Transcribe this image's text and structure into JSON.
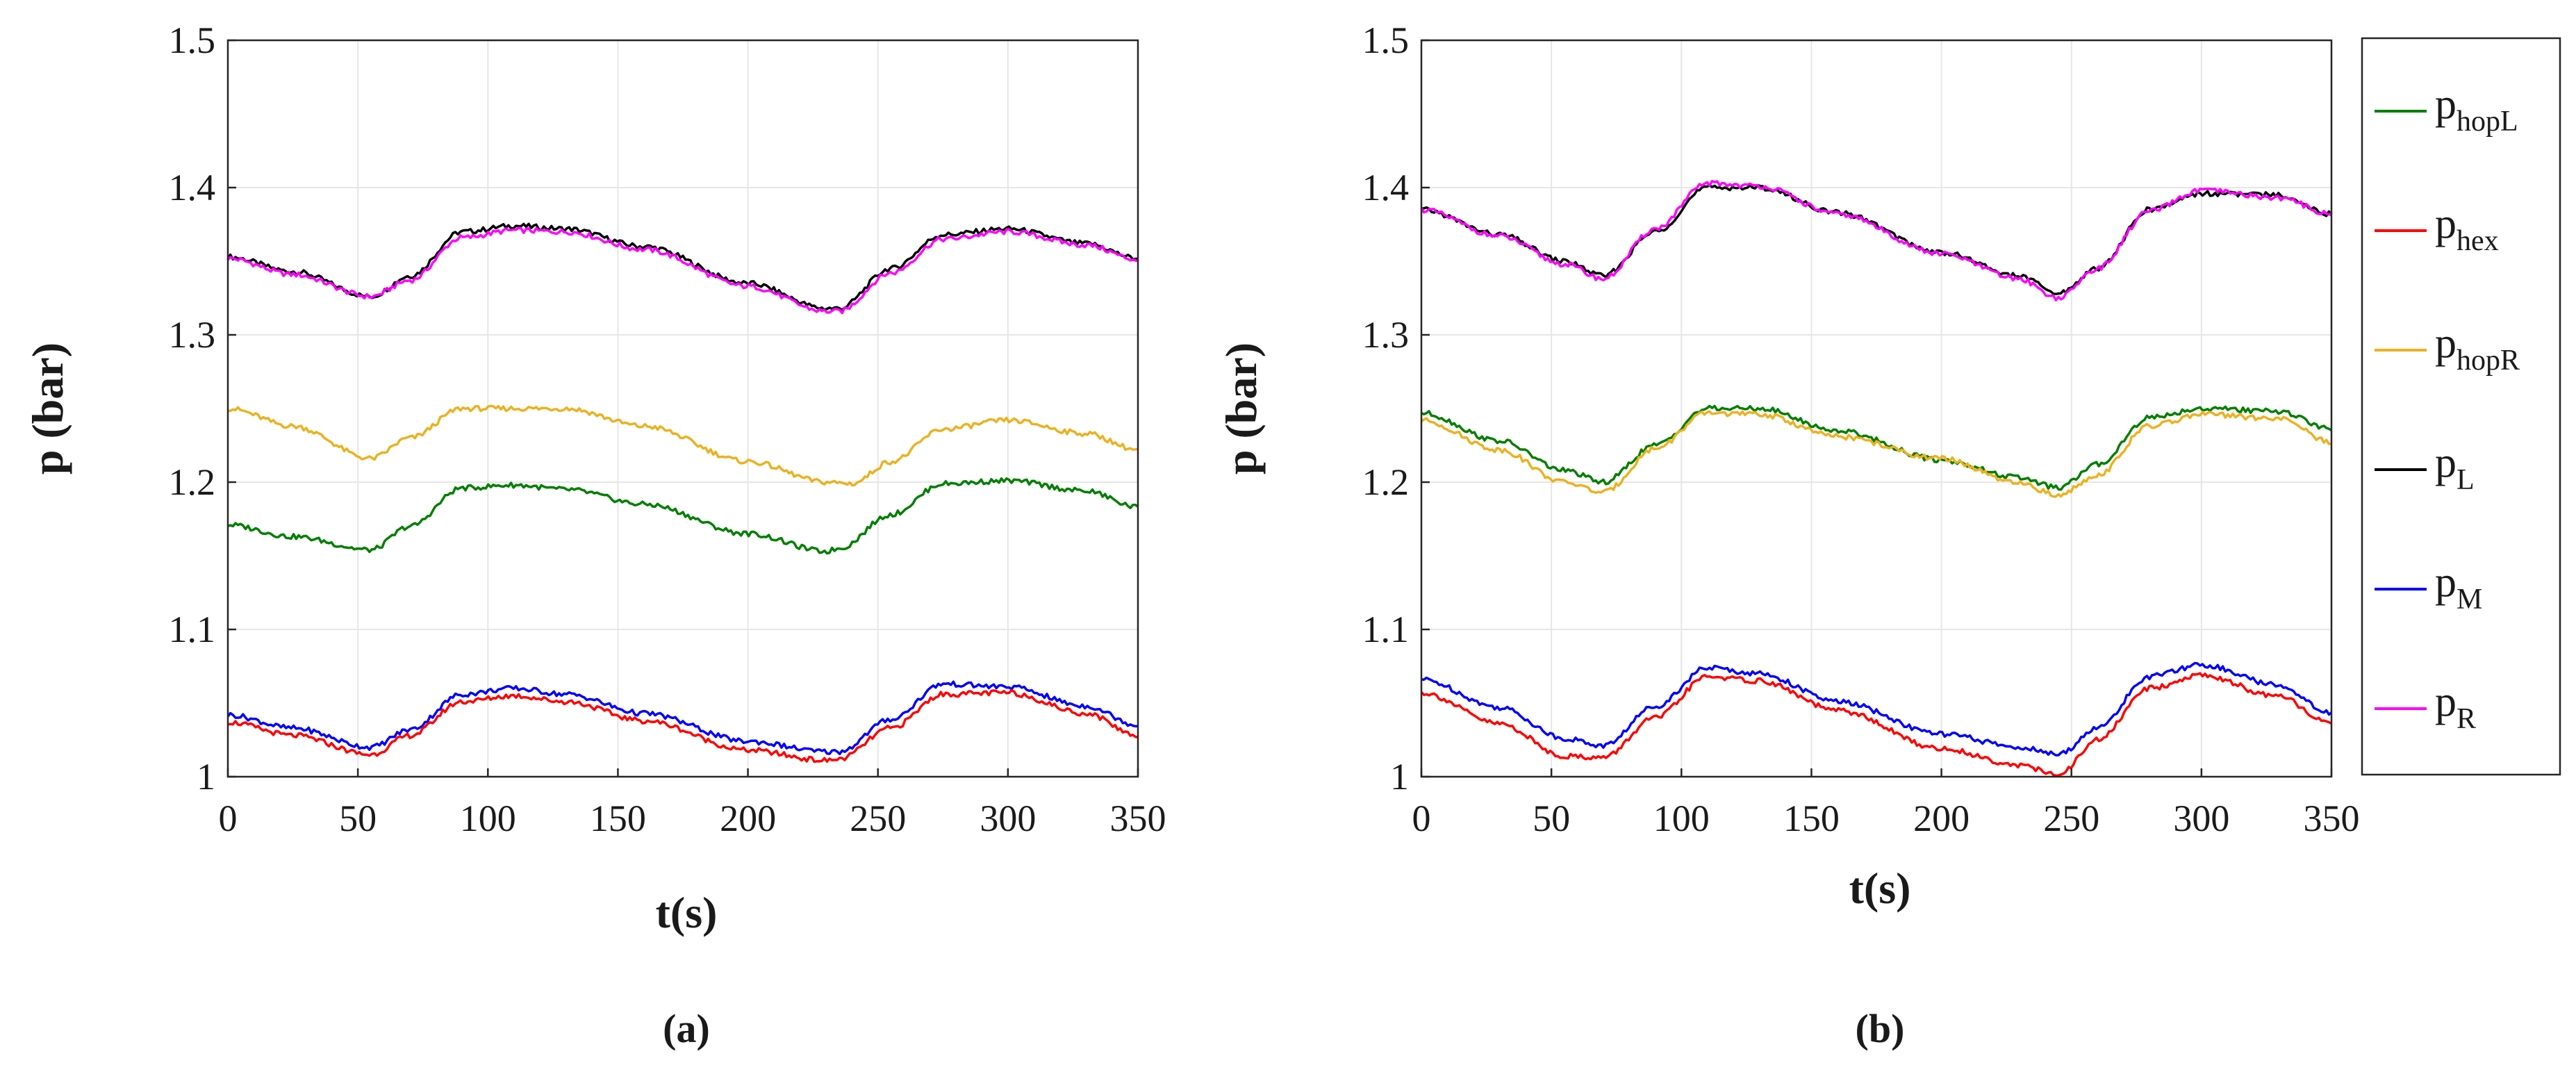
{
  "chart_data": [
    {
      "type": "line",
      "label": "(a)",
      "xlabel": "t(s)",
      "ylabel": "p (bar)",
      "xlim": [
        0,
        350
      ],
      "ylim": [
        1.0,
        1.5
      ],
      "xticks": [
        "0",
        "50",
        "100",
        "150",
        "200",
        "250",
        "300",
        "350"
      ],
      "yticks": [
        "1",
        "1.1",
        "1.2",
        "1.3",
        "1.4",
        "1.5"
      ],
      "grid": true,
      "series": [
        {
          "name": "pL",
          "color": "#000000",
          "t": [
            0,
            25,
            55,
            70,
            90,
            110,
            130,
            160,
            200,
            230,
            235,
            255,
            275,
            300,
            330,
            350
          ],
          "p": [
            1.353,
            1.343,
            1.326,
            1.34,
            1.37,
            1.374,
            1.372,
            1.36,
            1.335,
            1.318,
            1.318,
            1.345,
            1.368,
            1.372,
            1.362,
            1.352
          ]
        },
        {
          "name": "pR",
          "color": "#ff00ff",
          "t": [
            0,
            25,
            55,
            70,
            90,
            110,
            130,
            160,
            200,
            230,
            235,
            255,
            275,
            300,
            330,
            350
          ],
          "p": [
            1.352,
            1.341,
            1.326,
            1.337,
            1.366,
            1.371,
            1.37,
            1.358,
            1.333,
            1.316,
            1.316,
            1.342,
            1.365,
            1.37,
            1.361,
            1.351
          ]
        },
        {
          "name": "phopR",
          "color": "#edb120",
          "t": [
            0,
            25,
            55,
            70,
            90,
            110,
            130,
            160,
            200,
            230,
            240,
            255,
            275,
            300,
            330,
            350
          ],
          "p": [
            1.25,
            1.238,
            1.216,
            1.23,
            1.25,
            1.25,
            1.25,
            1.238,
            1.214,
            1.2,
            1.199,
            1.214,
            1.236,
            1.242,
            1.233,
            1.222
          ]
        },
        {
          "name": "phopL",
          "color": "#007f00",
          "t": [
            0,
            25,
            55,
            70,
            90,
            110,
            130,
            160,
            200,
            230,
            235,
            255,
            275,
            300,
            330,
            350
          ],
          "p": [
            1.171,
            1.163,
            1.154,
            1.17,
            1.196,
            1.198,
            1.195,
            1.185,
            1.165,
            1.153,
            1.155,
            1.178,
            1.199,
            1.201,
            1.194,
            1.183
          ]
        },
        {
          "name": "pM",
          "color": "#0000ff",
          "t": [
            0,
            25,
            55,
            70,
            90,
            110,
            130,
            160,
            200,
            230,
            235,
            255,
            275,
            300,
            330,
            350
          ],
          "p": [
            1.042,
            1.033,
            1.02,
            1.032,
            1.056,
            1.06,
            1.056,
            1.043,
            1.024,
            1.017,
            1.017,
            1.039,
            1.063,
            1.061,
            1.048,
            1.035
          ]
        },
        {
          "name": "phex",
          "color": "#ff0000",
          "t": [
            0,
            25,
            55,
            70,
            90,
            110,
            130,
            160,
            200,
            230,
            235,
            255,
            275,
            300,
            330,
            350
          ],
          "p": [
            1.037,
            1.028,
            1.015,
            1.028,
            1.051,
            1.055,
            1.051,
            1.038,
            1.018,
            1.011,
            1.012,
            1.033,
            1.056,
            1.057,
            1.043,
            1.028
          ]
        }
      ]
    },
    {
      "type": "line",
      "label": "(b)",
      "xlabel": "t(s)",
      "ylabel": "p (bar)",
      "xlim": [
        0,
        350
      ],
      "ylim": [
        1.0,
        1.5
      ],
      "xticks": [
        "0",
        "50",
        "100",
        "150",
        "200",
        "250",
        "300",
        "350"
      ],
      "yticks": [
        "1",
        "1.1",
        "1.2",
        "1.3",
        "1.4",
        "1.5"
      ],
      "grid": true,
      "series": [
        {
          "name": "pL",
          "color": "#000000",
          "t": [
            0,
            30,
            55,
            70,
            90,
            110,
            130,
            160,
            200,
            230,
            245,
            260,
            280,
            300,
            330,
            350
          ],
          "p": [
            1.385,
            1.368,
            1.35,
            1.34,
            1.37,
            1.4,
            1.4,
            1.383,
            1.356,
            1.34,
            1.328,
            1.345,
            1.385,
            1.396,
            1.395,
            1.382
          ]
        },
        {
          "name": "pR",
          "color": "#ff00ff",
          "t": [
            0,
            30,
            55,
            70,
            90,
            110,
            130,
            160,
            200,
            230,
            245,
            260,
            280,
            300,
            330,
            350
          ],
          "p": [
            1.385,
            1.367,
            1.348,
            1.338,
            1.372,
            1.403,
            1.401,
            1.382,
            1.355,
            1.338,
            1.325,
            1.345,
            1.384,
            1.398,
            1.393,
            1.382
          ]
        },
        {
          "name": "phopL",
          "color": "#007f00",
          "t": [
            0,
            30,
            55,
            70,
            90,
            110,
            130,
            160,
            200,
            230,
            245,
            260,
            280,
            300,
            330,
            350
          ],
          "p": [
            1.247,
            1.228,
            1.208,
            1.2,
            1.225,
            1.25,
            1.25,
            1.235,
            1.215,
            1.203,
            1.196,
            1.212,
            1.244,
            1.25,
            1.248,
            1.236
          ]
        },
        {
          "name": "phopR",
          "color": "#edb120",
          "t": [
            0,
            30,
            55,
            70,
            90,
            110,
            130,
            160,
            200,
            230,
            245,
            260,
            280,
            300,
            330,
            350
          ],
          "p": [
            1.242,
            1.222,
            1.2,
            1.193,
            1.223,
            1.247,
            1.246,
            1.231,
            1.216,
            1.199,
            1.191,
            1.205,
            1.238,
            1.246,
            1.243,
            1.227
          ]
        },
        {
          "name": "pM",
          "color": "#0000ff",
          "t": [
            0,
            30,
            55,
            70,
            90,
            110,
            130,
            160,
            200,
            230,
            245,
            260,
            280,
            300,
            330,
            350
          ],
          "p": [
            1.066,
            1.047,
            1.026,
            1.021,
            1.048,
            1.074,
            1.07,
            1.051,
            1.029,
            1.02,
            1.015,
            1.033,
            1.068,
            1.076,
            1.062,
            1.043
          ]
        },
        {
          "name": "phex",
          "color": "#ff0000",
          "t": [
            0,
            30,
            55,
            70,
            90,
            110,
            130,
            160,
            200,
            230,
            245,
            260,
            280,
            300,
            330,
            350
          ],
          "p": [
            1.057,
            1.036,
            1.014,
            1.013,
            1.04,
            1.068,
            1.065,
            1.045,
            1.019,
            1.008,
            1.001,
            1.025,
            1.06,
            1.069,
            1.054,
            1.036
          ]
        }
      ]
    }
  ],
  "legend": {
    "entries": [
      {
        "base": "p",
        "sub": "hopL",
        "color": "#007f00"
      },
      {
        "base": "p",
        "sub": "hex",
        "color": "#ff0000"
      },
      {
        "base": "p",
        "sub": "hopR",
        "color": "#edb120"
      },
      {
        "base": "p",
        "sub": "L",
        "color": "#000000"
      },
      {
        "base": "p",
        "sub": "M",
        "color": "#0000ff"
      },
      {
        "base": "p",
        "sub": "R",
        "color": "#ff00ff"
      }
    ]
  }
}
